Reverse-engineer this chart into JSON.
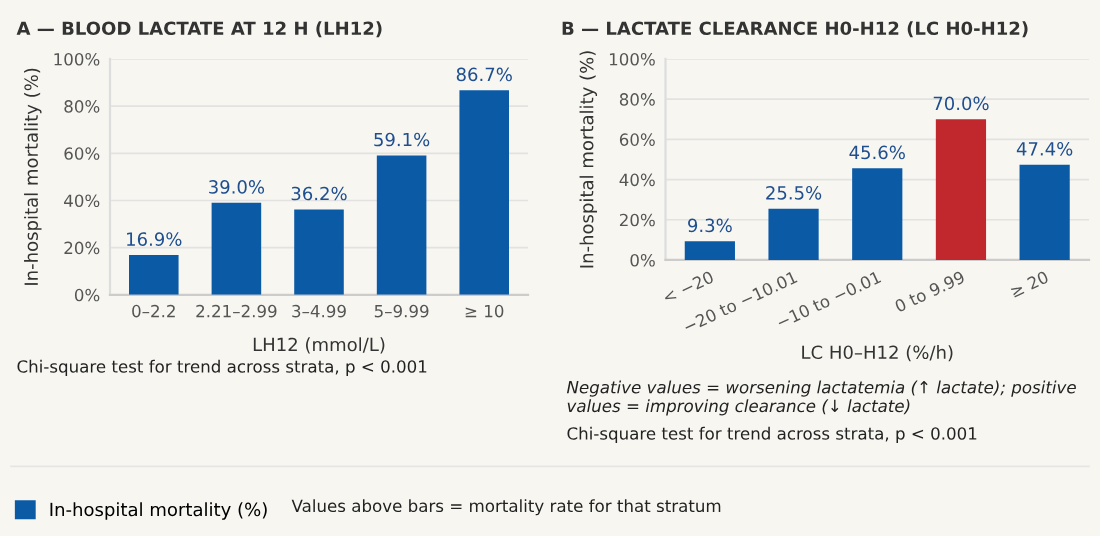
{
  "chart_data": [
    {
      "type": "bar",
      "title": "A — BLOOD LACTATE AT 12 H (LH12)",
      "xlabel": "LH12 (mmol/L)",
      "ylabel": "In-hospital mortality (%)",
      "categories": [
        "0–2.2",
        "2.21–2.99",
        "3–4.99",
        "5–9.99",
        "≥ 10"
      ],
      "series": [
        {
          "name": "In-hospital mortality (%)",
          "color": "#0b5aa6",
          "values": [
            16.9,
            39.0,
            36.2,
            59.1,
            86.7
          ],
          "value_labels": [
            "16.9%",
            "39.0%",
            "36.2%",
            "59.1%",
            "86.7%"
          ]
        }
      ],
      "ylim": [
        0,
        100
      ],
      "yticks": [
        {
          "value": 0,
          "label": "0%"
        },
        {
          "value": 20,
          "label": "20%"
        },
        {
          "value": 40,
          "label": "40%"
        },
        {
          "value": 60,
          "label": "60%"
        },
        {
          "value": 80,
          "label": "80%"
        },
        {
          "value": 100,
          "label": "100%"
        }
      ],
      "grid": "y",
      "legend": "bottom",
      "annotations": [
        "Chi-square test for trend across strata, p < 0.001",
        "Values above bars = mortality rate for that stratum"
      ]
    },
    {
      "type": "bar",
      "title": "B — LACTATE CLEARANCE H0-H12 (LC H0-H12)",
      "xlabel": "LC H0–H12 (%/h)",
      "ylabel": "In-hospital mortality (%)",
      "categories": [
        "< −20",
        "−20 to −10.01",
        "−10 to −0.01",
        "0 to 9.99",
        "≥ 20"
      ],
      "series": [
        {
          "colors": [
            "#0b5aa6",
            "#0b5aa6",
            "#0b5aa6",
            "#c0282d",
            "#0b5aa6"
          ],
          "values": [
            9.3,
            25.5,
            45.6,
            70.0,
            47.4
          ],
          "value_labels": [
            "9.3%",
            "25.5%",
            "45.6%",
            "70.0%",
            "47.4%"
          ]
        }
      ],
      "ylim": [
        0,
        100
      ],
      "yticks": [
        {
          "value": 0,
          "label": "0%"
        },
        {
          "value": 20,
          "label": "20%"
        },
        {
          "value": 40,
          "label": "40%"
        },
        {
          "value": 60,
          "label": "60%"
        },
        {
          "value": 80,
          "label": "80%"
        },
        {
          "value": 100,
          "label": "100%"
        }
      ],
      "grid": "y",
      "annotations": [
        "Negative values = worsening lactatemia (↑ lactate); positive values = improving clearance (↓ lactate)",
        "Chi-square test for trend across strata, p < 0.001"
      ]
    }
  ]
}
